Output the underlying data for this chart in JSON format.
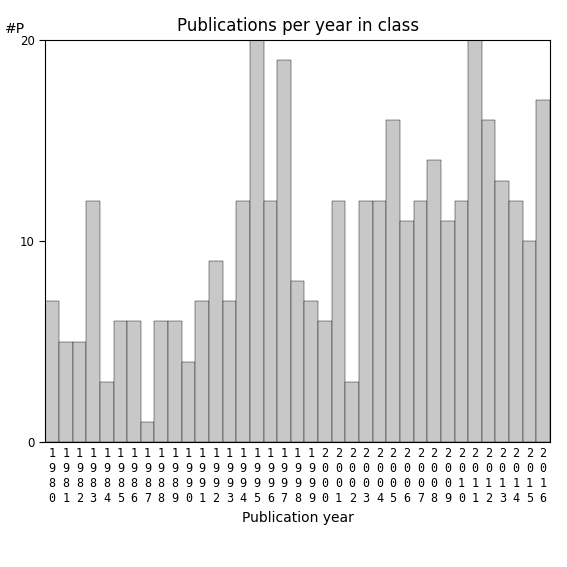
{
  "title": "Publications per year in class",
  "xlabel": "Publication year",
  "ylabel": "#P",
  "years": [
    1980,
    1981,
    1982,
    1983,
    1984,
    1985,
    1986,
    1987,
    1988,
    1989,
    1990,
    1991,
    1992,
    1993,
    1994,
    1995,
    1996,
    1997,
    1998,
    1999,
    2000,
    2001,
    2002,
    2003,
    2004,
    2005,
    2006,
    2007,
    2008,
    2009,
    2010,
    2011,
    2012,
    2013,
    2014,
    2015,
    2016
  ],
  "values": [
    7,
    5,
    5,
    12,
    3,
    6,
    6,
    1,
    6,
    6,
    4,
    7,
    9,
    7,
    12,
    20,
    12,
    19,
    8,
    7,
    6,
    12,
    3,
    12,
    12,
    16,
    11,
    12,
    14,
    11,
    12,
    20,
    16,
    13,
    12,
    10,
    17
  ],
  "bar_color": "#c8c8c8",
  "bar_edge_color": "#000000",
  "bar_edge_width": 0.3,
  "ylim": [
    0,
    20
  ],
  "yticks": [
    0,
    10,
    20
  ],
  "background_color": "#ffffff",
  "title_fontsize": 12,
  "axis_fontsize": 10,
  "tick_fontsize": 8.5
}
